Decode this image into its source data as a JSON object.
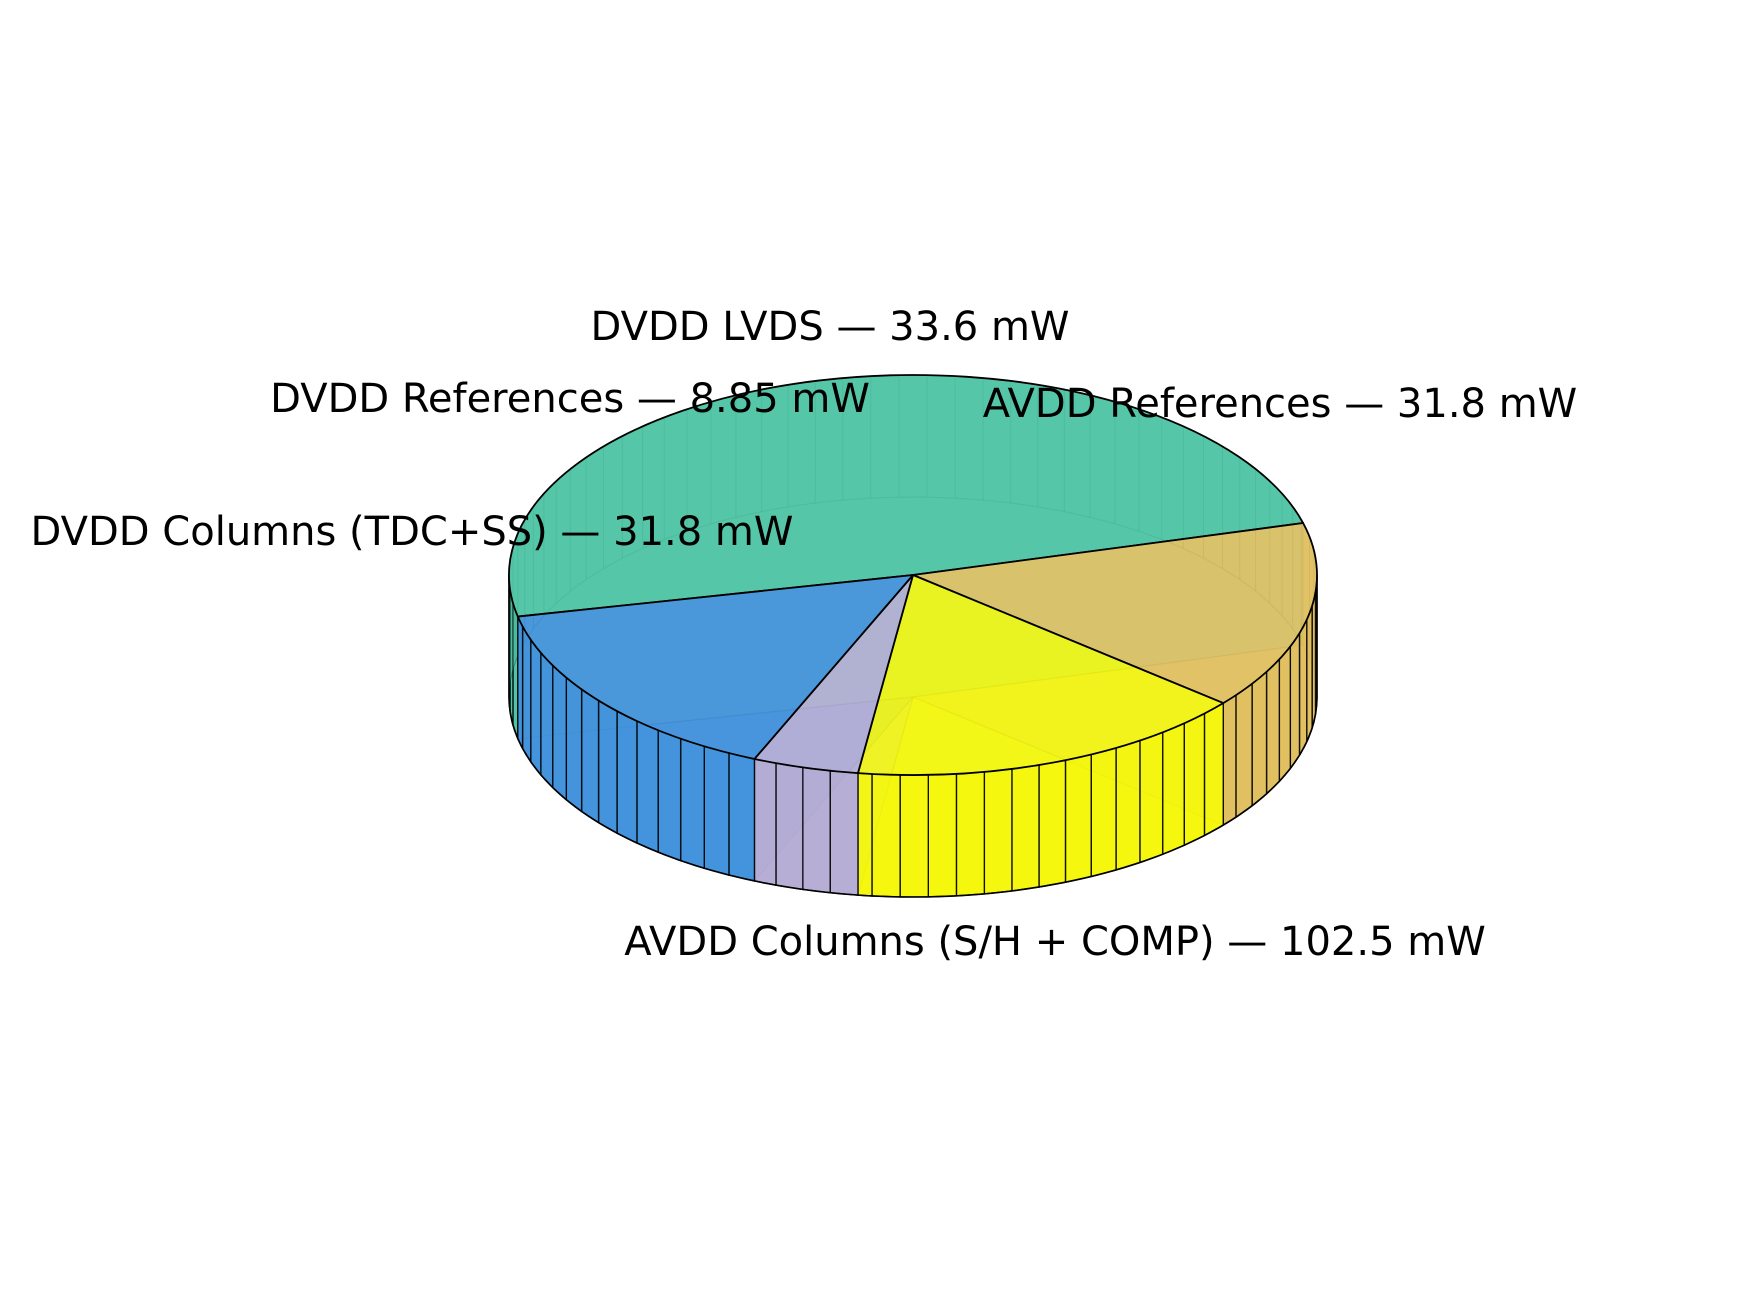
{
  "chart_data": {
    "type": "pie",
    "title": "",
    "style": "3d",
    "legend": "none",
    "unit": "mW",
    "slices": [
      {
        "label": "AVDD Columns (S/H + COMP) — 102.5 mW",
        "name": "AVDD Columns (S/H + COMP)",
        "value": 102.5,
        "color": "#4cc4a4"
      },
      {
        "label": "AVDD References — 31.8 mW",
        "name": "AVDD References",
        "value": 31.8,
        "color": "#e0bf5e"
      },
      {
        "label": "DVDD LVDS — 33.6 mW",
        "name": "DVDD LVDS",
        "value": 33.6,
        "color": "#f4f70a"
      },
      {
        "label": "DVDD References — 8.85 mW",
        "name": "DVDD References",
        "value": 8.85,
        "color": "#b4acd4"
      },
      {
        "label": "DVDD Columns (TDC+SS) — 31.8 mW",
        "name": "DVDD Columns (TDC+SS)",
        "value": 31.8,
        "color": "#3f90dc"
      }
    ]
  }
}
